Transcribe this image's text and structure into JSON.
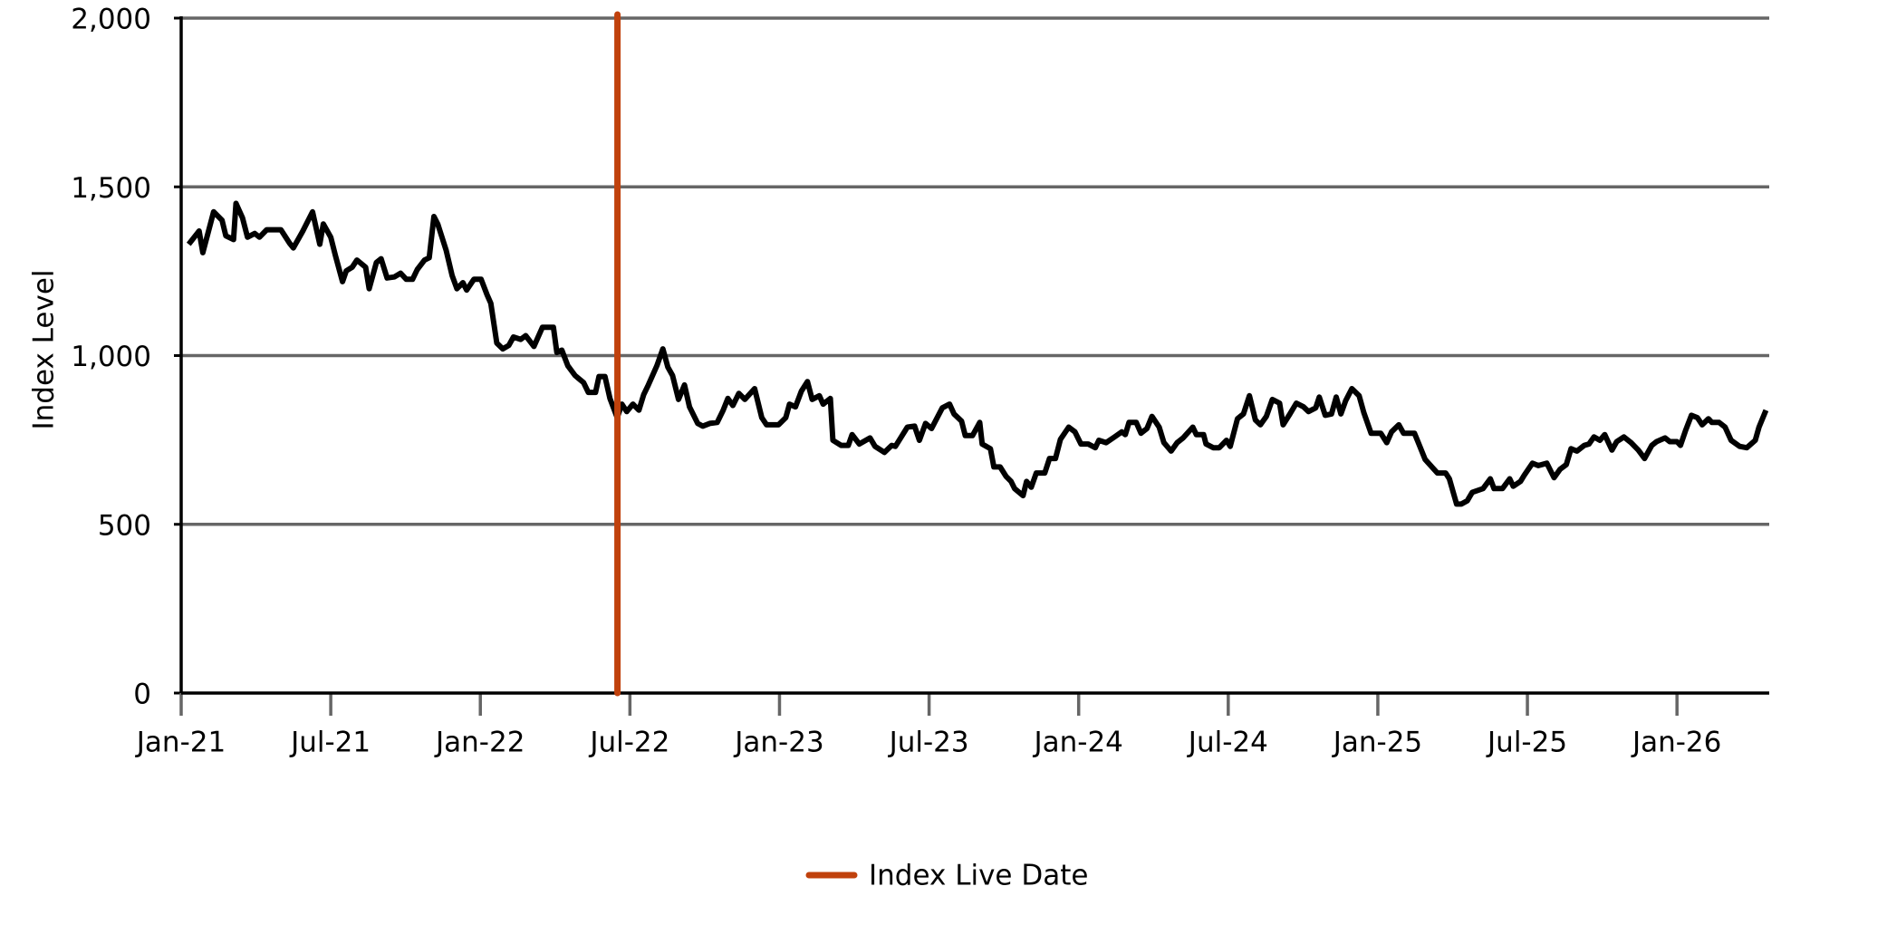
{
  "chart_data": {
    "type": "line",
    "y_label": "Index Level",
    "xlim": [
      0,
      63.7
    ],
    "ylim": [
      0,
      2000
    ],
    "xticks": [
      {
        "value": 0,
        "label": "Jan-21"
      },
      {
        "value": 6,
        "label": "Jul-21"
      },
      {
        "value": 12,
        "label": "Jan-22"
      },
      {
        "value": 18,
        "label": "Jul-22"
      },
      {
        "value": 24,
        "label": "Jan-23"
      },
      {
        "value": 30,
        "label": "Jul-23"
      },
      {
        "value": 36,
        "label": "Jan-24"
      },
      {
        "value": 42,
        "label": "Jul-24"
      },
      {
        "value": 48,
        "label": "Jan-25"
      },
      {
        "value": 54,
        "label": "Jul-25"
      },
      {
        "value": 60,
        "label": "Jan-26"
      }
    ],
    "yticks": [
      0,
      500,
      {
        "value": 1000,
        "label": "1,000"
      },
      {
        "value": 1500,
        "label": "1,500"
      },
      {
        "value": 2000,
        "label": "2,000"
      }
    ],
    "grid": true,
    "legend": "bottom",
    "x": [
      0.3,
      0.72,
      0.87,
      1.3,
      1.64,
      1.79,
      2.1,
      2.2,
      2.46,
      2.66,
      2.95,
      3.14,
      3.43,
      4.0,
      4.35,
      4.5,
      4.88,
      5.27,
      5.56,
      5.7,
      6.0,
      6.18,
      6.47,
      6.62,
      6.86,
      7.05,
      7.4,
      7.54,
      7.83,
      8.02,
      8.26,
      8.55,
      8.8,
      9.03,
      9.28,
      9.47,
      9.76,
      9.95,
      10.14,
      10.29,
      10.63,
      10.87,
      11.06,
      11.3,
      11.45,
      11.74,
      12.03,
      12.27,
      12.42,
      12.66,
      12.9,
      13.14,
      13.33,
      13.62,
      13.82,
      14.15,
      14.49,
      14.93,
      15.07,
      15.27,
      15.51,
      15.8,
      16.14,
      16.33,
      16.62,
      16.76,
      17.0,
      17.2,
      17.49,
      17.68,
      17.87,
      18.12,
      18.36,
      18.55,
      18.74,
      19.08,
      19.32,
      19.52,
      19.71,
      19.95,
      20.19,
      20.39,
      20.72,
      20.92,
      21.2,
      21.5,
      21.74,
      21.93,
      22.13,
      22.37,
      22.61,
      23.0,
      23.29,
      23.48,
      23.96,
      24.25,
      24.4,
      24.64,
      24.88,
      25.12,
      25.31,
      25.6,
      25.75,
      26.04,
      26.14,
      26.47,
      26.76,
      26.91,
      27.2,
      27.63,
      27.83,
      28.21,
      28.5,
      28.65,
      29.13,
      29.42,
      29.61,
      29.86,
      30.1,
      30.53,
      30.82,
      31.0,
      31.3,
      31.45,
      31.74,
      32.03,
      32.13,
      32.46,
      32.6,
      32.85,
      33.09,
      33.29,
      33.43,
      33.77,
      33.91,
      34.1,
      34.3,
      34.64,
      34.83,
      35.07,
      35.27,
      35.6,
      35.85,
      36.09,
      36.38,
      36.67,
      36.81,
      37.1,
      37.44,
      37.73,
      37.87,
      38.02,
      38.31,
      38.5,
      38.74,
      38.94,
      39.23,
      39.42,
      39.71,
      39.95,
      40.19,
      40.58,
      40.72,
      41.01,
      41.11,
      41.4,
      41.64,
      41.93,
      42.08,
      42.37,
      42.61,
      42.85,
      43.09,
      43.29,
      43.53,
      43.77,
      44.06,
      44.2,
      44.44,
      44.73,
      45.02,
      45.22,
      45.51,
      45.65,
      45.89,
      46.14,
      46.33,
      46.52,
      46.71,
      46.96,
      47.25,
      47.44,
      47.73,
      48.12,
      48.36,
      48.55,
      48.84,
      49.03,
      49.47,
      49.61,
      49.9,
      50.39,
      50.72,
      50.87,
      51.16,
      51.35,
      51.59,
      51.79,
      52.22,
      52.51,
      52.66,
      53.0,
      53.29,
      53.43,
      53.72,
      53.87,
      54.2,
      54.44,
      54.78,
      55.07,
      55.31,
      55.56,
      55.75,
      55.99,
      56.28,
      56.47,
      56.67,
      56.91,
      57.1,
      57.39,
      57.58,
      57.87,
      58.16,
      58.45,
      58.7,
      58.99,
      59.18,
      59.52,
      59.71,
      60.0,
      60.14,
      60.34,
      60.58,
      60.82,
      61.01,
      61.26,
      61.4,
      61.69,
      61.93,
      62.17,
      62.51,
      62.8,
      63.14,
      63.29,
      63.57
    ],
    "series": [
      {
        "color": "#000000",
        "values": [
          1330,
          1369,
          1305,
          1426,
          1401,
          1355,
          1344,
          1451,
          1408,
          1351,
          1362,
          1351,
          1373,
          1373,
          1333,
          1319,
          1369,
          1426,
          1330,
          1390,
          1351,
          1298,
          1219,
          1251,
          1262,
          1283,
          1262,
          1198,
          1276,
          1287,
          1230,
          1233,
          1244,
          1226,
          1226,
          1255,
          1283,
          1290,
          1412,
          1390,
          1312,
          1237,
          1198,
          1216,
          1194,
          1226,
          1226,
          1180,
          1155,
          1037,
          1020,
          1030,
          1055,
          1048,
          1059,
          1027,
          1084,
          1084,
          1009,
          1016,
          970,
          941,
          920,
          891,
          891,
          938,
          938,
          873,
          816,
          856,
          834,
          856,
          838,
          884,
          913,
          970,
          1020,
          966,
          941,
          870,
          913,
          848,
          799,
          791,
          799,
          802,
          838,
          873,
          852,
          888,
          870,
          902,
          816,
          795,
          795,
          816,
          856,
          848,
          895,
          923,
          870,
          881,
          856,
          873,
          749,
          734,
          734,
          766,
          738,
          756,
          731,
          713,
          734,
          731,
          788,
          791,
          749,
          799,
          784,
          845,
          856,
          827,
          806,
          763,
          763,
          802,
          738,
          724,
          670,
          670,
          642,
          627,
          606,
          585,
          627,
          610,
          652,
          652,
          695,
          695,
          752,
          788,
          774,
          738,
          738,
          727,
          749,
          742,
          759,
          774,
          766,
          802,
          802,
          770,
          784,
          820,
          788,
          742,
          717,
          742,
          756,
          788,
          766,
          766,
          738,
          727,
          727,
          749,
          731,
          813,
          827,
          881,
          809,
          795,
          820,
          870,
          859,
          795,
          823,
          859,
          848,
          834,
          845,
          877,
          823,
          827,
          877,
          827,
          866,
          902,
          881,
          831,
          770,
          770,
          742,
          774,
          795,
          770,
          770,
          745,
          692,
          652,
          652,
          635,
          560,
          560,
          570,
          595,
          606,
          635,
          606,
          606,
          635,
          613,
          627,
          645,
          681,
          674,
          681,
          638,
          663,
          677,
          724,
          717,
          734,
          738,
          759,
          749,
          766,
          720,
          745,
          759,
          742,
          720,
          695,
          734,
          745,
          756,
          745,
          745,
          734,
          777,
          823,
          816,
          795,
          813,
          802,
          802,
          788,
          749,
          731,
          727,
          749,
          788,
          838
        ]
      }
    ],
    "live_date": {
      "name": "Index Live Date",
      "x": 17.5,
      "color": "#c0410c"
    }
  }
}
